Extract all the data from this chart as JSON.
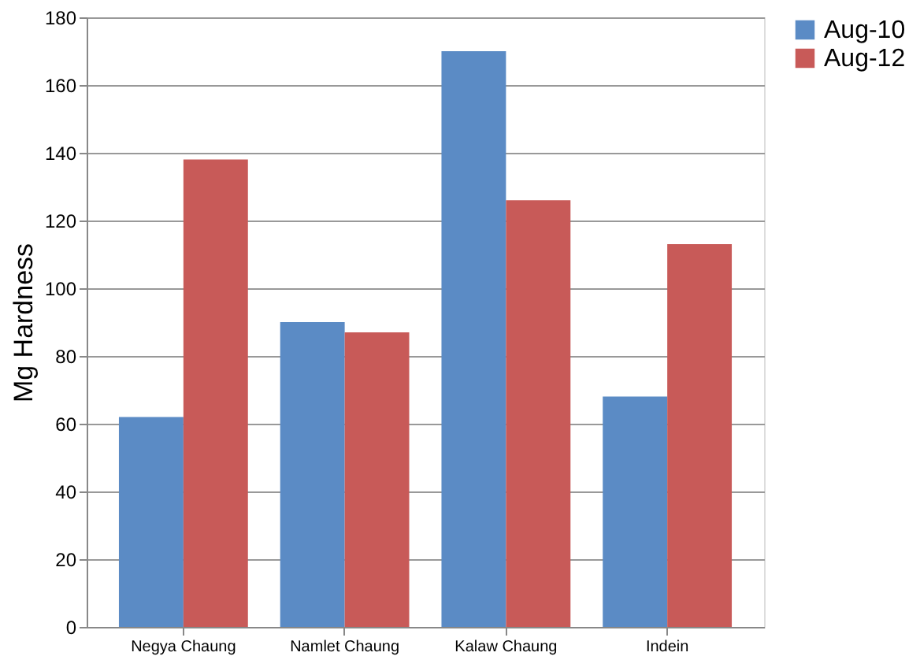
{
  "chart_data": {
    "type": "bar",
    "ylabel": "Mg Hardness",
    "categories": [
      "Negya Chaung",
      "Namlet Chaung",
      "Kalaw Chaung",
      "Indein"
    ],
    "series": [
      {
        "name": "Aug-10",
        "color": "#5b8bc5",
        "values": [
          62,
          90,
          170,
          68
        ]
      },
      {
        "name": "Aug-12",
        "color": "#c85a58",
        "values": [
          138,
          87,
          126,
          113
        ]
      }
    ],
    "ylim": [
      0,
      180
    ],
    "yticks": [
      0,
      20,
      40,
      60,
      80,
      100,
      120,
      140,
      160,
      180
    ],
    "grid": "y",
    "legend": "right"
  }
}
